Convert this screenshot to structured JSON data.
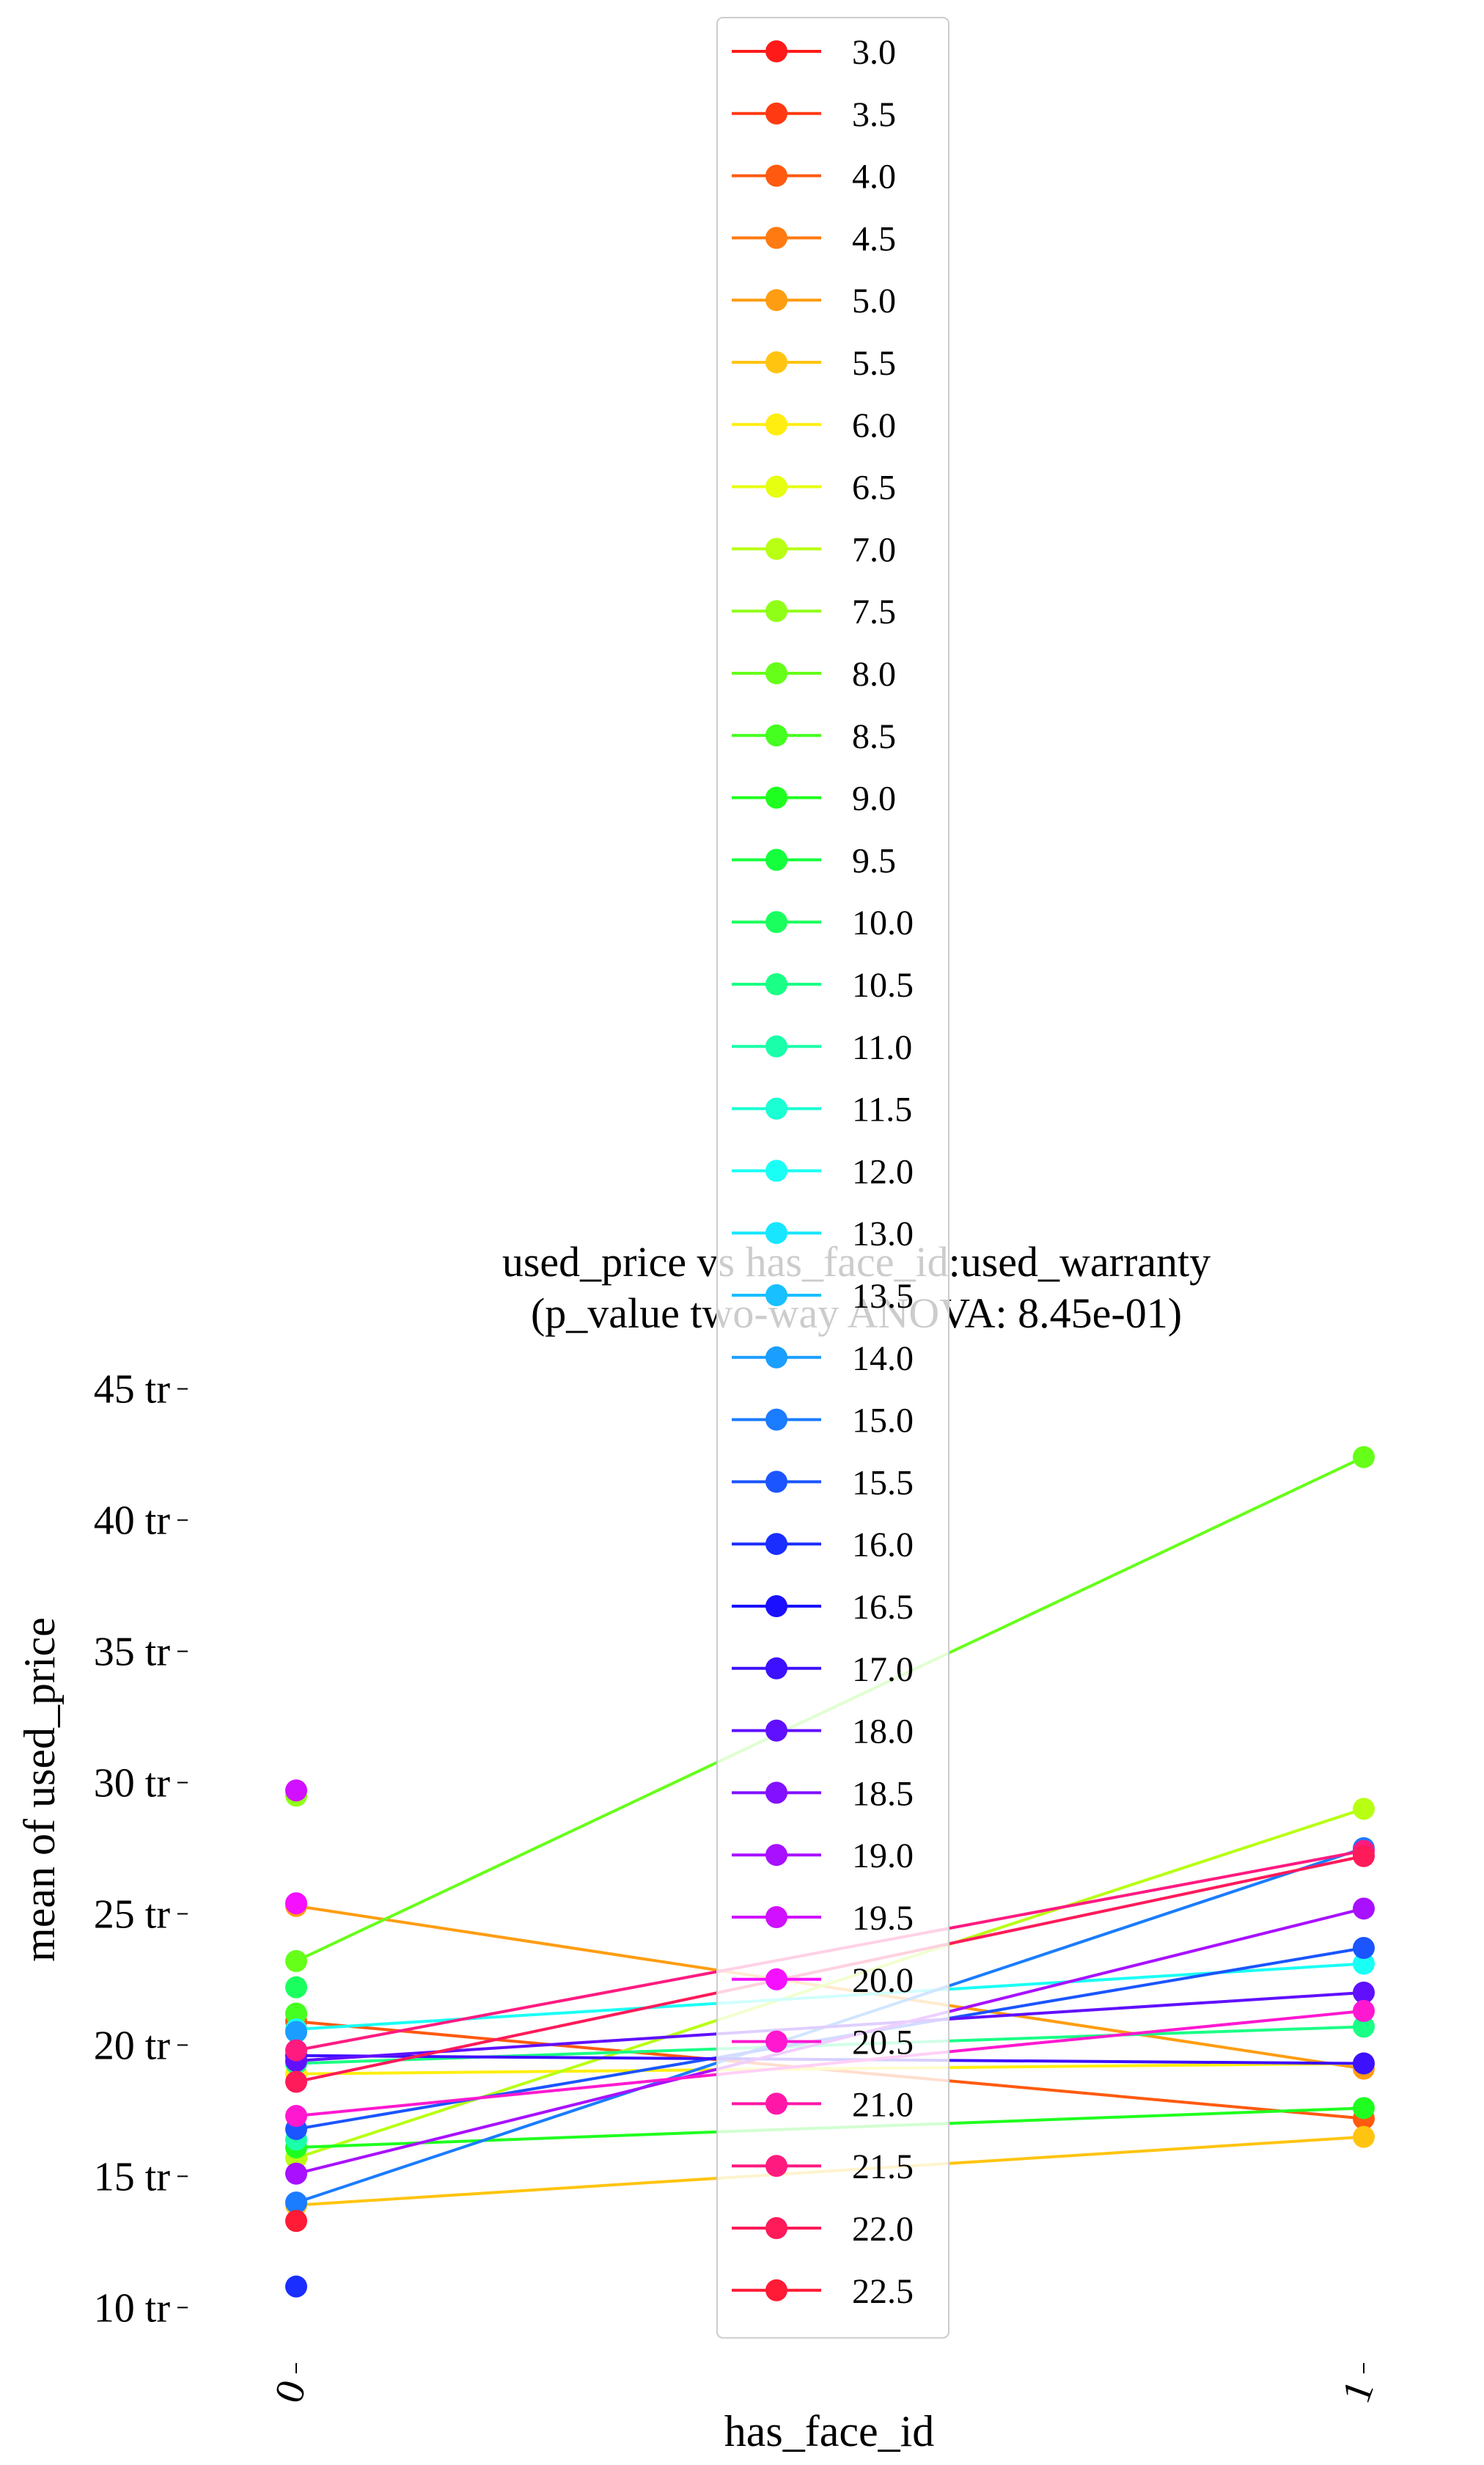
{
  "chart_data": {
    "type": "line",
    "title": "used_price vs has_face_id:used_warranty",
    "subtitle": "(p_value two-way ANOVA: 8.45e-01)",
    "xlabel": "has_face_id",
    "ylabel": "mean of used_price",
    "x": [
      "0",
      "1"
    ],
    "ylim": [
      8.5,
      46.5
    ],
    "yticks": [
      10,
      15,
      20,
      25,
      30,
      35,
      40,
      45
    ],
    "ytick_labels": [
      "10 tr",
      "15 tr",
      "20 tr",
      "25 tr",
      "30 tr",
      "35 tr",
      "40 tr",
      "45 tr"
    ],
    "grid": false,
    "legend_position": "top-center",
    "series": [
      {
        "name": "3.0",
        "color": "#ff1a1a",
        "values": [
          null,
          null
        ]
      },
      {
        "name": "3.5",
        "color": "#ff3a12",
        "values": [
          null,
          null
        ]
      },
      {
        "name": "4.0",
        "color": "#ff5a0f",
        "values": [
          20.9,
          17.2
        ]
      },
      {
        "name": "4.5",
        "color": "#ff7a10",
        "values": [
          null,
          null
        ]
      },
      {
        "name": "5.0",
        "color": "#ff9d12",
        "values": [
          25.3,
          19.1
        ]
      },
      {
        "name": "5.5",
        "color": "#ffc410",
        "values": [
          13.9,
          16.5
        ]
      },
      {
        "name": "6.0",
        "color": "#ffee10",
        "values": [
          18.9,
          19.3
        ]
      },
      {
        "name": "6.5",
        "color": "#e6ff10",
        "values": [
          null,
          null
        ]
      },
      {
        "name": "7.0",
        "color": "#b8ff14",
        "values": [
          15.7,
          29.0
        ]
      },
      {
        "name": "7.5",
        "color": "#90ff18",
        "values": [
          29.5,
          null
        ]
      },
      {
        "name": "8.0",
        "color": "#66ff1a",
        "values": [
          23.2,
          42.4
        ]
      },
      {
        "name": "8.5",
        "color": "#44ff20",
        "values": [
          21.2,
          null
        ]
      },
      {
        "name": "9.0",
        "color": "#1fff1f",
        "values": [
          16.1,
          17.6
        ]
      },
      {
        "name": "9.5",
        "color": "#14ff3c",
        "values": [
          null,
          null
        ]
      },
      {
        "name": "10.0",
        "color": "#1aff5e",
        "values": [
          22.2,
          null
        ]
      },
      {
        "name": "10.5",
        "color": "#1aff85",
        "values": [
          19.3,
          20.7
        ]
      },
      {
        "name": "11.0",
        "color": "#1affaa",
        "values": [
          16.4,
          null
        ]
      },
      {
        "name": "11.5",
        "color": "#1affd4",
        "values": [
          null,
          null
        ]
      },
      {
        "name": "12.0",
        "color": "#1afff5",
        "values": [
          20.6,
          23.1
        ]
      },
      {
        "name": "13.0",
        "color": "#18e6ff",
        "values": [
          null,
          null
        ]
      },
      {
        "name": "13.5",
        "color": "#18c0ff",
        "values": [
          null,
          null
        ]
      },
      {
        "name": "14.0",
        "color": "#1a9eff",
        "values": [
          20.5,
          null
        ]
      },
      {
        "name": "15.0",
        "color": "#1a7cff",
        "values": [
          14.0,
          27.5
        ]
      },
      {
        "name": "15.5",
        "color": "#1a55ff",
        "values": [
          16.8,
          23.7
        ]
      },
      {
        "name": "16.0",
        "color": "#1a2eff",
        "values": [
          10.8,
          null
        ]
      },
      {
        "name": "16.5",
        "color": "#1a10ff",
        "values": [
          null,
          null
        ]
      },
      {
        "name": "17.0",
        "color": "#3d10ff",
        "values": [
          19.6,
          19.3
        ]
      },
      {
        "name": "18.0",
        "color": "#6010ff",
        "values": [
          19.4,
          22.0
        ]
      },
      {
        "name": "18.5",
        "color": "#8310ff",
        "values": [
          null,
          null
        ]
      },
      {
        "name": "19.0",
        "color": "#a810ff",
        "values": [
          15.1,
          25.2
        ]
      },
      {
        "name": "19.5",
        "color": "#d010ff",
        "values": [
          29.7,
          null
        ]
      },
      {
        "name": "20.0",
        "color": "#f510ff",
        "values": [
          25.4,
          null
        ]
      },
      {
        "name": "20.5",
        "color": "#ff18d0",
        "values": [
          17.3,
          21.3
        ]
      },
      {
        "name": "21.0",
        "color": "#ff18a8",
        "values": [
          null,
          null
        ]
      },
      {
        "name": "21.5",
        "color": "#ff1a80",
        "values": [
          19.8,
          27.4
        ]
      },
      {
        "name": "22.0",
        "color": "#ff1a5a",
        "values": [
          18.6,
          27.2
        ]
      },
      {
        "name": "22.5",
        "color": "#ff1a35",
        "values": [
          13.3,
          null
        ]
      }
    ]
  }
}
